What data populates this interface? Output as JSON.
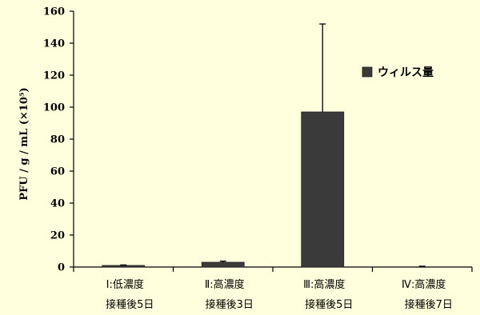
{
  "chart_data": {
    "type": "bar",
    "ylabel": "PFU / g / mL (×10⁵)",
    "ylim": [
      0,
      160
    ],
    "yticks": [
      0,
      20,
      40,
      60,
      80,
      100,
      120,
      140,
      160
    ],
    "categories": [
      {
        "line1": "Ⅰ:低濃度",
        "line2": "接種後5日"
      },
      {
        "line1": "Ⅱ:高濃度",
        "line2": "接種後3日"
      },
      {
        "line1": "Ⅲ:高濃度",
        "line2": "接種後5日"
      },
      {
        "line1": "Ⅳ:高濃度",
        "line2": "接種後7日"
      }
    ],
    "series": [
      {
        "name": "ウィルス量",
        "color": "#3a3a3a",
        "values": [
          1,
          3,
          97,
          0
        ],
        "error": [
          0.3,
          0.7,
          55,
          0.5
        ]
      }
    ],
    "legend_position": "top-right",
    "grid": false
  }
}
